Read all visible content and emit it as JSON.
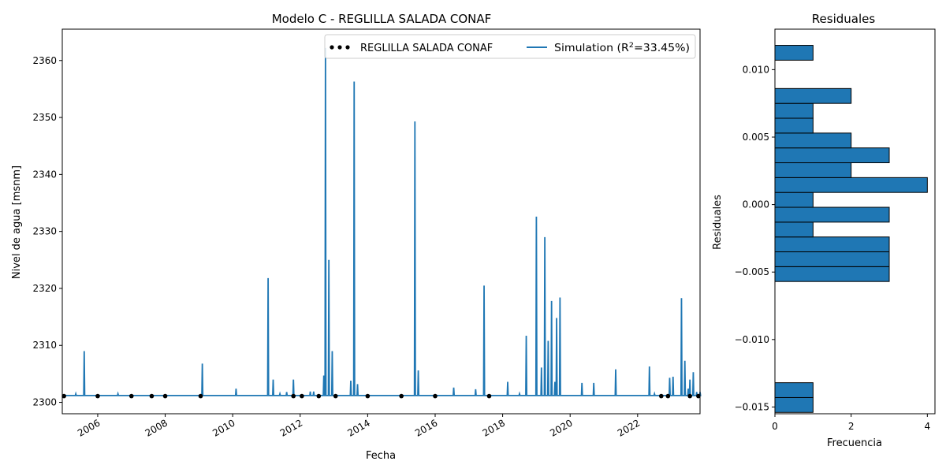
{
  "chart_data": [
    {
      "type": "line",
      "title": "Modelo C - REGLILLA SALADA CONAF",
      "xlabel": "Fecha",
      "ylabel": "Nivel de agua [msnm]",
      "xlim": [
        2004.95,
        2023.85
      ],
      "ylim": [
        2298,
        2365.5
      ],
      "x_ticks": [
        2006,
        2008,
        2010,
        2012,
        2014,
        2016,
        2018,
        2020,
        2022
      ],
      "y_ticks": [
        2300,
        2310,
        2320,
        2330,
        2340,
        2350,
        2360
      ],
      "legend": {
        "placement": "top-right",
        "entries": [
          "REGLILLA SALADA CONAF",
          "Simulation ($R^2$=33.45%)"
        ]
      },
      "series": [
        {
          "name": "REGLILLA SALADA CONAF",
          "kind": "scatter",
          "color": "#000000",
          "x": [
            2005.0,
            2006.0,
            2007.0,
            2007.6,
            2008.0,
            2009.05,
            2011.8,
            2012.05,
            2012.55,
            2013.05,
            2014.0,
            2015.0,
            2016.0,
            2017.6,
            2022.7,
            2022.9,
            2023.55,
            2023.8
          ],
          "y": [
            2301.1,
            2301.1,
            2301.1,
            2301.1,
            2301.1,
            2301.1,
            2301.1,
            2301.1,
            2301.1,
            2301.1,
            2301.1,
            2301.1,
            2301.1,
            2301.1,
            2301.1,
            2301.1,
            2301.1,
            2301.1
          ]
        },
        {
          "name": "Simulation ($R^2$=33.45%)",
          "kind": "line",
          "color": "#1f77b4",
          "baseline": 2301.2,
          "spikes": [
            {
              "x": 2005.35,
              "y": 2301.5
            },
            {
              "x": 2005.6,
              "y": 2309.0
            },
            {
              "x": 2006.6,
              "y": 2301.5
            },
            {
              "x": 2009.1,
              "y": 2306.8
            },
            {
              "x": 2010.1,
              "y": 2302.4
            },
            {
              "x": 2011.05,
              "y": 2321.8
            },
            {
              "x": 2011.2,
              "y": 2304.0
            },
            {
              "x": 2011.4,
              "y": 2301.5
            },
            {
              "x": 2011.6,
              "y": 2301.8
            },
            {
              "x": 2011.8,
              "y": 2304.0
            },
            {
              "x": 2012.3,
              "y": 2301.9
            },
            {
              "x": 2012.4,
              "y": 2301.9
            },
            {
              "x": 2012.7,
              "y": 2304.7
            },
            {
              "x": 2012.75,
              "y": 2362.2
            },
            {
              "x": 2012.85,
              "y": 2325.0
            },
            {
              "x": 2012.95,
              "y": 2309.0
            },
            {
              "x": 2013.5,
              "y": 2303.8
            },
            {
              "x": 2013.6,
              "y": 2356.3
            },
            {
              "x": 2013.7,
              "y": 2303.2
            },
            {
              "x": 2015.4,
              "y": 2349.3
            },
            {
              "x": 2015.5,
              "y": 2305.6
            },
            {
              "x": 2016.55,
              "y": 2302.6
            },
            {
              "x": 2017.2,
              "y": 2302.3
            },
            {
              "x": 2017.45,
              "y": 2320.5
            },
            {
              "x": 2018.15,
              "y": 2303.6
            },
            {
              "x": 2018.5,
              "y": 2301.5
            },
            {
              "x": 2018.7,
              "y": 2311.7
            },
            {
              "x": 2019.0,
              "y": 2332.6
            },
            {
              "x": 2019.15,
              "y": 2306.1
            },
            {
              "x": 2019.25,
              "y": 2329.0
            },
            {
              "x": 2019.35,
              "y": 2310.8
            },
            {
              "x": 2019.45,
              "y": 2317.8
            },
            {
              "x": 2019.55,
              "y": 2303.6
            },
            {
              "x": 2019.6,
              "y": 2314.8
            },
            {
              "x": 2019.7,
              "y": 2318.4
            },
            {
              "x": 2020.35,
              "y": 2303.4
            },
            {
              "x": 2020.7,
              "y": 2303.4
            },
            {
              "x": 2021.35,
              "y": 2305.8
            },
            {
              "x": 2022.35,
              "y": 2306.3
            },
            {
              "x": 2022.5,
              "y": 2301.5
            },
            {
              "x": 2022.95,
              "y": 2304.3
            },
            {
              "x": 2023.05,
              "y": 2304.5
            },
            {
              "x": 2023.3,
              "y": 2318.3
            },
            {
              "x": 2023.4,
              "y": 2307.3
            },
            {
              "x": 2023.5,
              "y": 2302.4
            },
            {
              "x": 2023.55,
              "y": 2304.0
            },
            {
              "x": 2023.65,
              "y": 2305.3
            },
            {
              "x": 2023.75,
              "y": 2301.8
            },
            {
              "x": 2023.85,
              "y": 2301.8
            }
          ]
        }
      ]
    },
    {
      "type": "bar",
      "orientation": "horizontal",
      "title": "Residuales",
      "xlabel": "Frecuencia",
      "ylabel": "Residuales",
      "xlim": [
        0,
        4.2
      ],
      "ylim": [
        -0.0155,
        0.013
      ],
      "x_ticks": [
        0,
        2,
        4
      ],
      "y_ticks": [
        -0.015,
        -0.01,
        -0.005,
        0.0,
        0.005,
        0.01
      ],
      "y_tick_labels": [
        "−0.015",
        "−0.010",
        "−0.005",
        "0.000",
        "0.005",
        "0.010"
      ],
      "color": "#1f77b4",
      "bins": [
        {
          "low": -0.0154,
          "high": -0.0143,
          "count": 1
        },
        {
          "low": -0.0143,
          "high": -0.0132,
          "count": 1
        },
        {
          "low": -0.0057,
          "high": -0.0046,
          "count": 3
        },
        {
          "low": -0.0046,
          "high": -0.0035,
          "count": 3
        },
        {
          "low": -0.0035,
          "high": -0.0024,
          "count": 3
        },
        {
          "low": -0.0024,
          "high": -0.0013,
          "count": 1
        },
        {
          "low": -0.0013,
          "high": -0.0002,
          "count": 3
        },
        {
          "low": -0.0002,
          "high": 0.0009,
          "count": 1
        },
        {
          "low": 0.0009,
          "high": 0.002,
          "count": 4
        },
        {
          "low": 0.002,
          "high": 0.0031,
          "count": 2
        },
        {
          "low": 0.0031,
          "high": 0.0042,
          "count": 3
        },
        {
          "low": 0.0042,
          "high": 0.0053,
          "count": 2
        },
        {
          "low": 0.0053,
          "high": 0.0064,
          "count": 1
        },
        {
          "low": 0.0064,
          "high": 0.0075,
          "count": 1
        },
        {
          "low": 0.0075,
          "high": 0.0086,
          "count": 2
        },
        {
          "low": 0.0107,
          "high": 0.0118,
          "count": 1
        }
      ]
    }
  ]
}
